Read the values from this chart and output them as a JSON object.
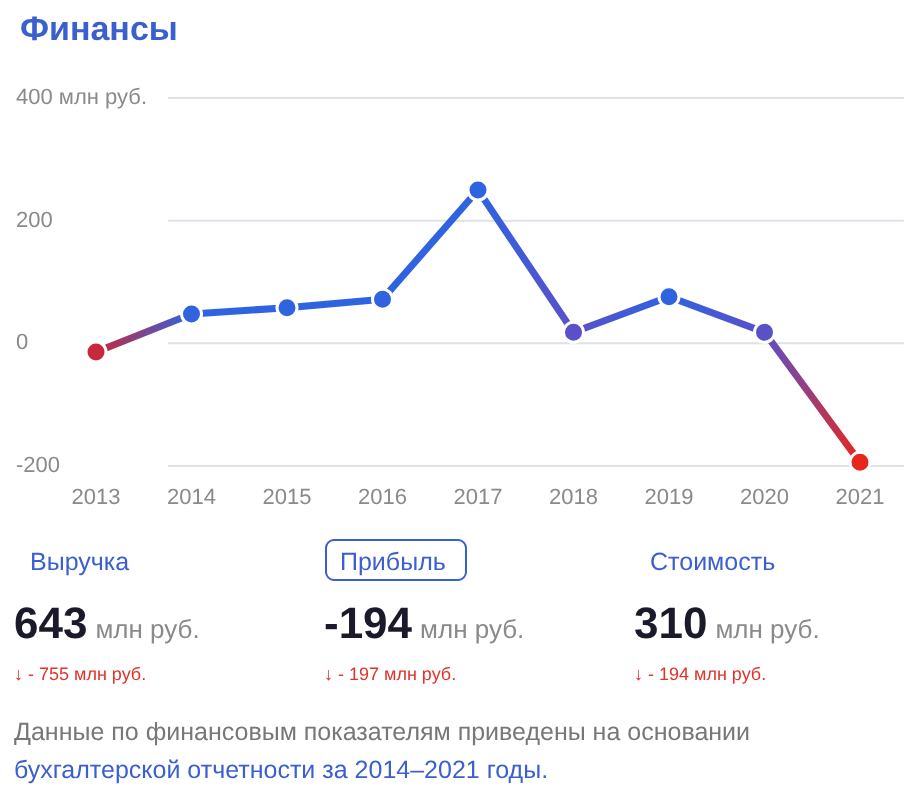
{
  "chart_data": [
    {
      "type": "line",
      "title": "Финансы",
      "categories": [
        "2013",
        "2014",
        "2015",
        "2016",
        "2017",
        "2018",
        "2019",
        "2020",
        "2021"
      ],
      "series": [
        {
          "values": [
            -14,
            48,
            58,
            72,
            250,
            18,
            76,
            18,
            -194
          ],
          "colors": [
            "#c8283c",
            "#2f63e0",
            "#2f63e0",
            "#2f63e0",
            "#2f63e0",
            "#5a50c8",
            "#2f63e0",
            "#5a50c8",
            "#e8261e"
          ]
        }
      ],
      "ylim": [
        -200,
        400
      ],
      "yticks": [
        -200,
        0,
        200,
        {
          "value": 400,
          "label": "400 млн руб."
        }
      ],
      "grid": "y",
      "marker": "circle",
      "line_style": "solid"
    },
    {
      "type": "other",
      "categories": [
        "Выручка",
        "Прибыль",
        "Стоимость"
      ],
      "values": [
        643,
        -194,
        310
      ],
      "data_labels": true,
      "ylabel": "млн руб.",
      "annotations": [
        "↓ - 755 млн руб.",
        "↓ - 197 млн руб.",
        "↓ - 194 млн руб.",
        "Данные по финансовым показателям приведены на основании",
        "бухгалтерской отчетности за 2014–2021 годы."
      ]
    }
  ]
}
